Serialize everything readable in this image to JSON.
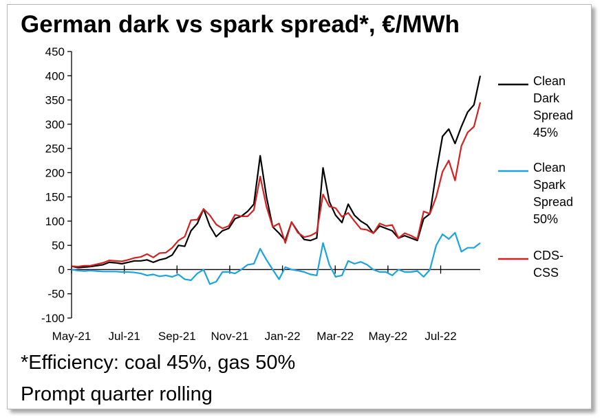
{
  "chart_data": {
    "type": "line",
    "title": "German dark vs spark spread*, €/MWh",
    "notes": [
      "*Efficiency: coal 45%, gas 50%",
      "Prompt quarter rolling"
    ],
    "ylim": [
      -100,
      450
    ],
    "yticks": [
      450,
      400,
      350,
      300,
      250,
      200,
      150,
      100,
      50,
      0,
      -50,
      -100
    ],
    "xtick_labels": [
      "May-21",
      "Jul-21",
      "Sep-21",
      "Nov-21",
      "Jan-22",
      "Mar-22",
      "May-22",
      "Jul-22"
    ],
    "grid": false,
    "legend_position": "right",
    "series": [
      {
        "name": "Clean Dark Spread 45%",
        "legend_lines": [
          "Clean",
          "Dark",
          "Spread",
          "45%"
        ],
        "color": "#000000",
        "values": [
          7,
          4,
          5,
          6,
          8,
          10,
          15,
          14,
          12,
          15,
          18,
          18,
          20,
          15,
          20,
          23,
          30,
          50,
          48,
          80,
          95,
          125,
          90,
          68,
          80,
          85,
          105,
          110,
          120,
          135,
          235,
          150,
          88,
          75,
          60,
          98,
          78,
          62,
          60,
          65,
          210,
          140,
          112,
          97,
          135,
          112,
          100,
          92,
          75,
          90,
          85,
          80,
          65,
          70,
          65,
          60,
          105,
          115,
          200,
          275,
          290,
          260,
          295,
          325,
          340,
          400
        ]
      },
      {
        "name": "Clean Spark Spread 50%",
        "legend_lines": [
          "Clean",
          "Spark",
          "Spread",
          "50%"
        ],
        "color": "#1aa3e0",
        "values": [
          0,
          -2,
          -3,
          -2,
          -3,
          -4,
          -4,
          -4,
          -5,
          -5,
          -6,
          -8,
          -12,
          -10,
          -14,
          -12,
          -15,
          -10,
          -20,
          -22,
          -8,
          0,
          -30,
          -25,
          -5,
          -5,
          -8,
          0,
          10,
          12,
          43,
          20,
          0,
          -20,
          5,
          0,
          -2,
          -5,
          -10,
          -12,
          55,
          10,
          -15,
          -12,
          18,
          12,
          16,
          10,
          0,
          -5,
          -5,
          -12,
          0,
          -5,
          -5,
          -3,
          -15,
          0,
          50,
          73,
          63,
          76,
          37,
          45,
          45,
          55
        ]
      },
      {
        "name": "CDS-CSS",
        "legend_lines": [
          "CDS-",
          "CSS"
        ],
        "color": "#d42020",
        "values": [
          7,
          6,
          8,
          8,
          11,
          14,
          19,
          18,
          17,
          20,
          24,
          26,
          32,
          25,
          34,
          35,
          45,
          60,
          68,
          102,
          103,
          125,
          112,
          93,
          85,
          90,
          113,
          110,
          110,
          123,
          192,
          130,
          88,
          95,
          55,
          98,
          76,
          67,
          70,
          77,
          155,
          130,
          127,
          109,
          117,
          100,
          84,
          82,
          75,
          95,
          90,
          92,
          65,
          75,
          70,
          63,
          120,
          115,
          150,
          202,
          225,
          184,
          255,
          283,
          295,
          345
        ]
      }
    ]
  }
}
